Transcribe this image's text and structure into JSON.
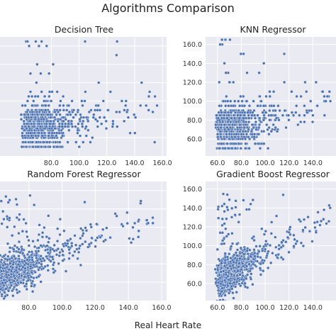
{
  "figure": {
    "title": "Algorithms Comparison",
    "xlabel": "Real Heart Rate",
    "colors": {
      "panel_bg": "#eaeaf2",
      "grid": "#ffffff",
      "point": "#4c72b0",
      "point_edge": "#ffffff"
    }
  },
  "chart_data": [
    {
      "type": "scatter",
      "title": "Decision Tree",
      "x_ticks": [
        "80.0",
        "100.0",
        "120.0",
        "140.0",
        "160.0"
      ],
      "y_ticks": [],
      "xlim": [
        40,
        163
      ],
      "ylim": [
        40,
        170
      ],
      "grid": true,
      "prediction_levels": [
        50,
        55,
        60,
        62,
        65,
        68,
        70,
        72,
        75,
        78,
        80,
        82,
        85,
        88,
        90,
        95,
        100,
        105,
        110,
        120,
        130,
        140,
        150,
        160,
        165
      ],
      "seed": 11
    },
    {
      "type": "scatter",
      "title": "KNN Regressor",
      "x_ticks": [
        "60.0",
        "80.0",
        "100.0",
        "120.0",
        "140.0"
      ],
      "y_ticks": [
        "60.0",
        "80.0",
        "100.0",
        "120.0",
        "140.0",
        "160.0"
      ],
      "xlim": [
        50,
        163
      ],
      "ylim": [
        42,
        168
      ],
      "grid": true,
      "prediction_levels": [
        50,
        55,
        60,
        62,
        65,
        68,
        70,
        72,
        75,
        78,
        80,
        82,
        85,
        88,
        90,
        95,
        100,
        105,
        110,
        120,
        130,
        140,
        150,
        160,
        165
      ],
      "seed": 23
    },
    {
      "type": "scatter",
      "title": "Random Forest Regressor",
      "x_ticks": [
        "80.0",
        "100.0",
        "120.0",
        "140.0",
        "160.0"
      ],
      "y_ticks": [],
      "xlim": [
        60,
        163
      ],
      "ylim": [
        40,
        170
      ],
      "grid": true,
      "continuous": true,
      "seed": 37
    },
    {
      "type": "scatter",
      "title": "Gradient Boost Regressor",
      "x_ticks": [
        "60.0",
        "80.0",
        "100.0",
        "120.0",
        "140.0"
      ],
      "y_ticks": [
        "60.0",
        "80.0",
        "100.0",
        "120.0",
        "140.0",
        "160.0"
      ],
      "xlim": [
        50,
        163
      ],
      "ylim": [
        42,
        168
      ],
      "grid": true,
      "continuous": true,
      "seed": 53
    }
  ]
}
